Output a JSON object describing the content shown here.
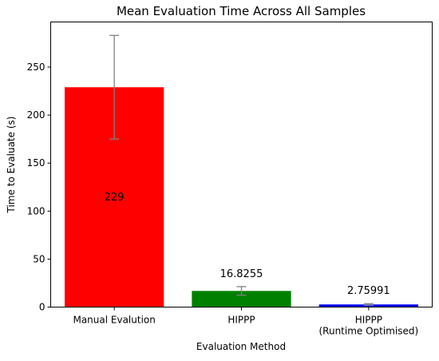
{
  "chart_data": {
    "type": "bar",
    "title": "Mean Evaluation Time Across All Samples",
    "xlabel": "Evaluation Method",
    "ylabel": "Time to Evaluate (s)",
    "categories": [
      [
        "Manual Evalution"
      ],
      [
        "HIPPP"
      ],
      [
        "HIPPP",
        "(Runtime Optimised)"
      ]
    ],
    "values": [
      229,
      16.8255,
      2.75991
    ],
    "data_labels": [
      "229",
      "16.8255",
      "2.75991"
    ],
    "errors": [
      54,
      4.5,
      0.8
    ],
    "colors": [
      "#ff0000",
      "#008000",
      "#0000ff"
    ],
    "error_color": "#808080",
    "ylim": [
      0,
      297
    ],
    "yticks": [
      0,
      50,
      100,
      150,
      200,
      250
    ],
    "grid": false
  }
}
